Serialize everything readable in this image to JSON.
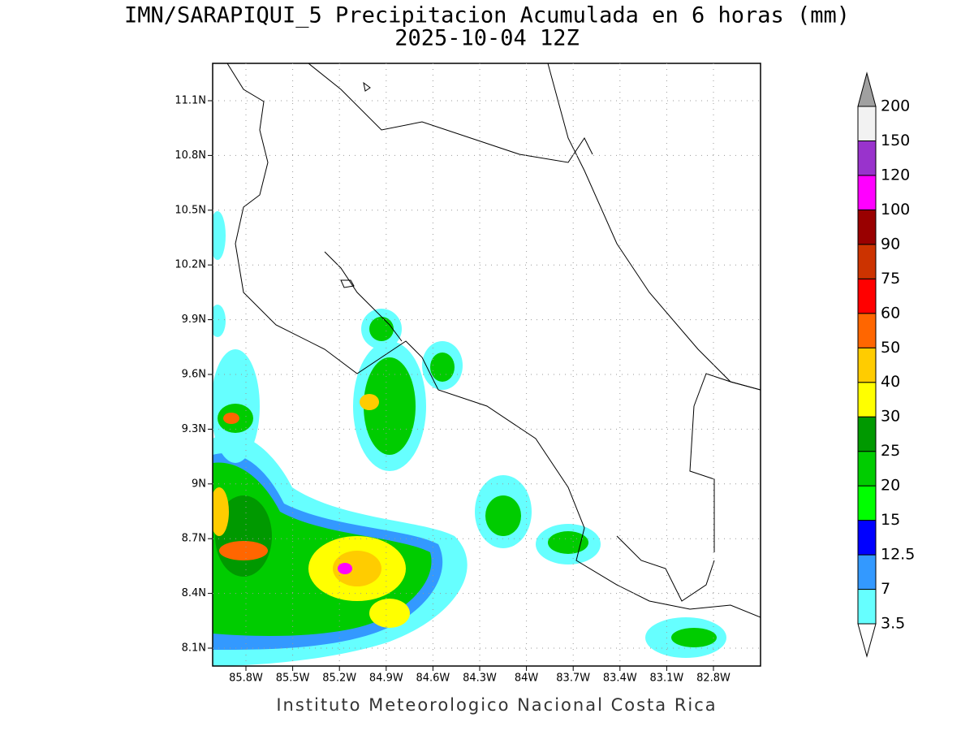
{
  "header": {
    "title": "IMN/SARAPIQUI_5 Precipitacion Acumulada en 6 horas (mm)",
    "subtitle": "2025-10-04 12Z"
  },
  "map": {
    "lat_labels": [
      "11.1N",
      "10.8N",
      "10.5N",
      "10.2N",
      "9.9N",
      "9.6N",
      "9.3N",
      "9N",
      "8.7N",
      "8.4N",
      "8.1N"
    ],
    "lon_labels": [
      "85.8W",
      "85.5W",
      "85.2W",
      "84.9W",
      "84.6W",
      "84.3W",
      "84W",
      "83.7W",
      "83.4W",
      "83.1W",
      "82.8W"
    ]
  },
  "colorbar": {
    "labels": [
      "3.5",
      "7",
      "12.5",
      "15",
      "20",
      "25",
      "30",
      "40",
      "50",
      "60",
      "75",
      "90",
      "100",
      "120",
      "150",
      "200"
    ],
    "colors": [
      "#66ffff",
      "#3399ff",
      "#0000ff",
      "#00ff00",
      "#00cc00",
      "#009900",
      "#ffff00",
      "#ffcc00",
      "#ff6600",
      "#ff0000",
      "#cc3300",
      "#990000",
      "#ff00ff",
      "#9933cc",
      "#f2f2f2"
    ],
    "below_color": "#ffffff",
    "above_color": "#a0a0a0"
  },
  "footer": "Instituto Meteorologico Nacional Costa Rica"
}
